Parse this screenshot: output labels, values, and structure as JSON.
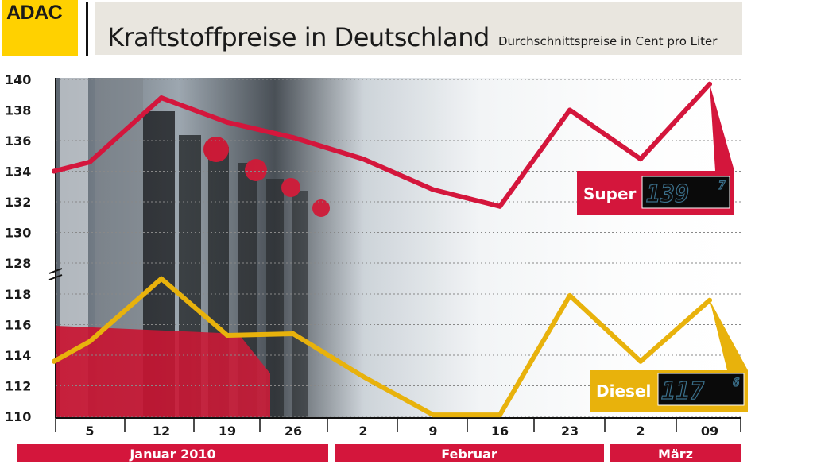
{
  "header": {
    "logo": "ADAC",
    "title": "Kraftstoffpreise in Deutschland",
    "subtitle": "Durchschnittspreise in Cent pro Liter"
  },
  "colors": {
    "super": "#d4163c",
    "diesel": "#e8b20c",
    "logo": "#ffd100",
    "month_band": "#d4163c"
  },
  "chart_data": {
    "type": "line",
    "title": "Kraftstoffpreise in Deutschland",
    "subtitle": "Durchschnittspreise in Cent pro Liter",
    "x": [
      "5",
      "12",
      "19",
      "26",
      "2",
      "9",
      "16",
      "23",
      "2",
      "09"
    ],
    "months": [
      {
        "label": "Januar 2010",
        "span": [
          0,
          3
        ]
      },
      {
        "label": "Februar",
        "span": [
          4,
          7
        ]
      },
      {
        "label": "März",
        "span": [
          8,
          9
        ]
      }
    ],
    "upper_axis": {
      "ticks": [
        128,
        130,
        132,
        134,
        136,
        138,
        140
      ],
      "range": [
        128,
        140
      ]
    },
    "lower_axis": {
      "ticks": [
        110,
        112,
        114,
        116,
        118
      ],
      "range": [
        110,
        118
      ]
    },
    "axis_break": true,
    "grid": true,
    "series": [
      {
        "name": "Super",
        "axis": "upper",
        "start_value": 134.0,
        "values": [
          134.6,
          138.8,
          137.2,
          136.2,
          134.8,
          132.8,
          131.7,
          138.0,
          134.8,
          139.7
        ],
        "display": "139.7"
      },
      {
        "name": "Diesel",
        "axis": "lower",
        "start_value": 113.6,
        "values": [
          114.9,
          119.0,
          115.3,
          115.4,
          112.6,
          110.1,
          110.1,
          117.9,
          113.6,
          117.6
        ],
        "display": "117.6"
      }
    ]
  },
  "labels": {
    "super_badge": "Super",
    "super_lcd": "139",
    "super_lcd_tenth": "7",
    "diesel_badge": "Diesel",
    "diesel_lcd": "117",
    "diesel_lcd_tenth": "6"
  }
}
